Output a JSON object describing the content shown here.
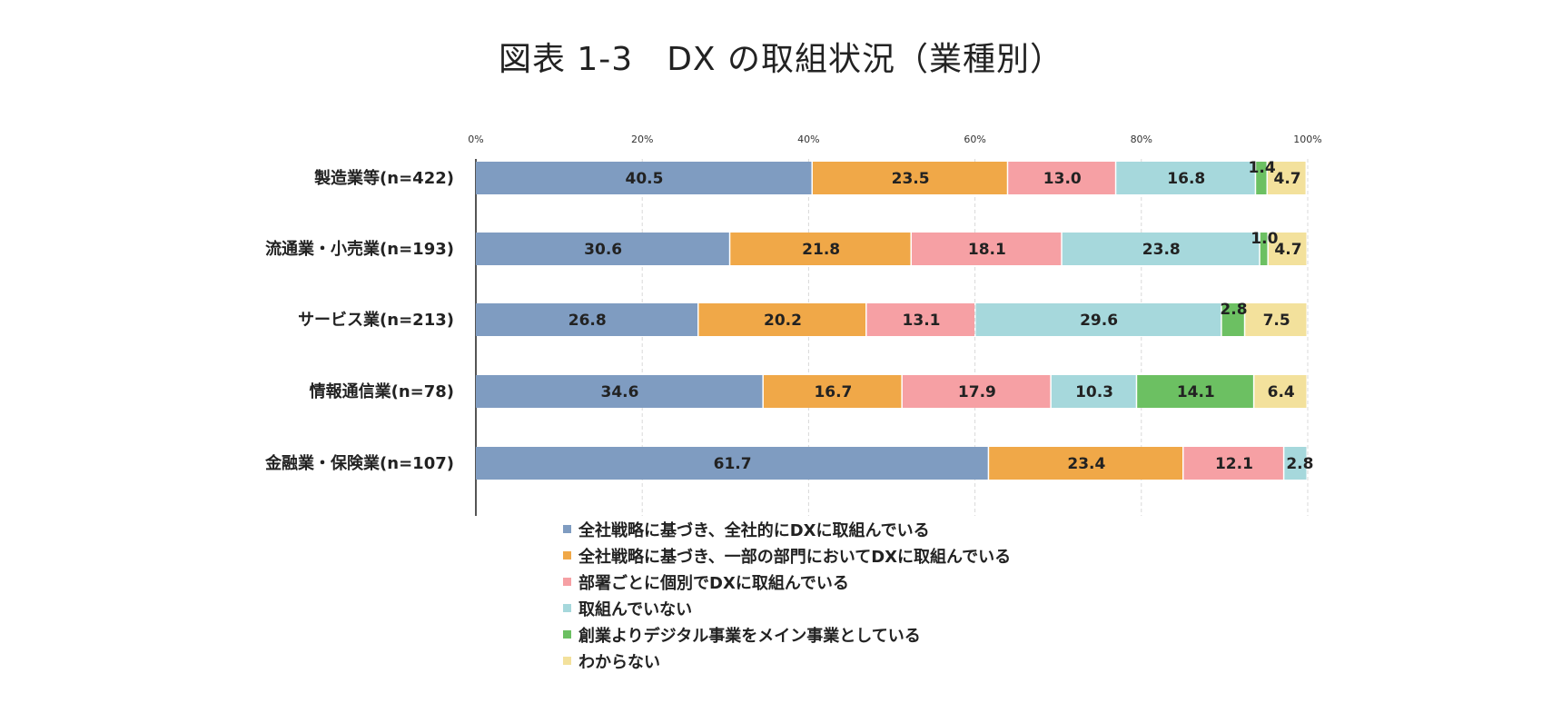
{
  "title": "図表 1-3　DX の取組状況（業種別）",
  "chart_data": {
    "type": "bar",
    "orientation": "horizontal",
    "stacked": "100%",
    "title": "図表 1-3　DX の取組状況（業種別）",
    "x_ticks": [
      "0%",
      "20%",
      "40%",
      "60%",
      "80%",
      "100%"
    ],
    "xlim": [
      0,
      100
    ],
    "grid": true,
    "legend_position": "bottom",
    "categories": [
      "製造業等(n=422)",
      "流通業・小売業(n=193)",
      "サービス業(n=213)",
      "情報通信業(n=78)",
      "金融業・保険業(n=107)"
    ],
    "series": [
      {
        "name": "全社戦略に基づき、全社的にDXに取組んでいる",
        "color": "#7f9cc1",
        "values": [
          40.5,
          30.6,
          26.8,
          34.6,
          61.7
        ]
      },
      {
        "name": "全社戦略に基づき、一部の部門においてDXに取組んでいる",
        "color": "#f0a848",
        "values": [
          23.5,
          21.8,
          20.2,
          16.7,
          23.4
        ]
      },
      {
        "name": "部署ごとに個別でDXに取組んでいる",
        "color": "#f6a0a4",
        "values": [
          13.0,
          18.1,
          13.1,
          17.9,
          12.1
        ]
      },
      {
        "name": "取組んでいない",
        "color": "#a6d8dc",
        "values": [
          16.8,
          23.8,
          29.6,
          10.3,
          2.8
        ]
      },
      {
        "name": "創業よりデジタル事業をメイン事業としている",
        "color": "#6cc062",
        "values": [
          1.4,
          1.0,
          2.8,
          14.1,
          0
        ]
      },
      {
        "name": "わからない",
        "color": "#f3e19c",
        "values": [
          4.7,
          4.7,
          7.5,
          6.4,
          0
        ]
      }
    ]
  }
}
